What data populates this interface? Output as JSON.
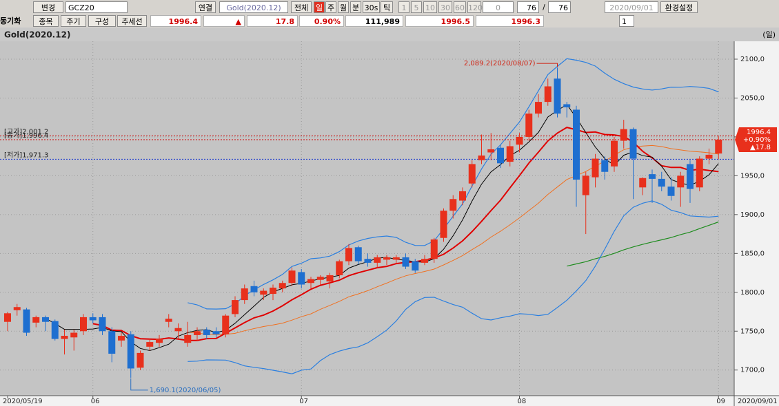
{
  "toolbar": {
    "row1": [
      "변경",
      "GCZ20",
      "연결",
      "Gold(2020.12)",
      "전체",
      "일",
      "주",
      "월",
      "분",
      "30s",
      "틱",
      "1",
      "5",
      "10",
      "30",
      "60",
      "120",
      "0",
      "76",
      "/",
      "76",
      "2020/09/01",
      "환경설정"
    ],
    "row2": [
      "동기화",
      "종목",
      "주기",
      "구성",
      "추세선",
      "1996.4",
      "▲",
      "17.8",
      "0.90%",
      "111,989",
      "1996.5",
      "1996.3",
      "1"
    ]
  },
  "chart_data": {
    "type": "candlestick",
    "title": "Gold(2020.12)",
    "period_label": "(일)",
    "categories": [
      "2020/05/19",
      null,
      null,
      null,
      null,
      null,
      null,
      null,
      null,
      "06",
      null,
      null,
      null,
      null,
      null,
      null,
      null,
      null,
      null,
      null,
      null,
      null,
      null,
      null,
      null,
      null,
      null,
      null,
      null,
      null,
      null,
      "07",
      null,
      null,
      null,
      null,
      null,
      null,
      null,
      null,
      null,
      null,
      null,
      null,
      null,
      null,
      null,
      null,
      null,
      null,
      null,
      null,
      null,
      null,
      "08",
      null,
      null,
      null,
      null,
      null,
      null,
      null,
      null,
      null,
      null,
      null,
      null,
      null,
      null,
      null,
      null,
      null,
      null,
      null,
      null,
      "09"
    ],
    "open": [
      1762,
      1777,
      1778,
      1761,
      1768,
      1763,
      1740,
      1742,
      1750,
      1768,
      1768,
      1750,
      1738,
      1746,
      1703,
      1730,
      1735,
      1762,
      1750,
      1735,
      1745,
      1752,
      1750,
      1746,
      1772,
      1790,
      1808,
      1797,
      1798,
      1805,
      1812,
      1826,
      1812,
      1816,
      1814,
      1822,
      1840,
      1858,
      1843,
      1838,
      1842,
      1842,
      1845,
      1840,
      1838,
      1843,
      1870,
      1905,
      1918,
      1940,
      1970,
      1980,
      1986,
      1968,
      1990,
      2000,
      2030,
      2045,
      2075,
      2042,
      2035,
      1925,
      1948,
      1970,
      1962,
      1995,
      2010,
      1935,
      1952,
      1946,
      1936,
      1935,
      1965,
      1935,
      1972,
      1978.6
    ],
    "high": [
      1775,
      1785,
      1780,
      1770,
      1770,
      1765,
      1752,
      1752,
      1772,
      1773,
      1772,
      1755,
      1748,
      1750,
      1725,
      1740,
      1745,
      1772,
      1760,
      1762,
      1755,
      1755,
      1755,
      1772,
      1795,
      1810,
      1815,
      1805,
      1810,
      1815,
      1832,
      1830,
      1820,
      1822,
      1825,
      1842,
      1862,
      1860,
      1850,
      1848,
      1848,
      1848,
      1850,
      1843,
      1848,
      1870,
      1908,
      1925,
      1935,
      1970,
      2003,
      2005,
      1990,
      1995,
      2005,
      2035,
      2055,
      2075,
      2089.2,
      2045,
      2040,
      1955,
      1978,
      1975,
      2000,
      2022,
      2012,
      1948,
      1958,
      1955,
      1948,
      1955,
      1970,
      1975,
      1985,
      2001.2
    ],
    "low": [
      1750,
      1770,
      1744,
      1755,
      1750,
      1738,
      1720,
      1725,
      1745,
      1760,
      1745,
      1710,
      1730,
      1690.1,
      1700,
      1725,
      1730,
      1755,
      1740,
      1730,
      1738,
      1740,
      1742,
      1742,
      1768,
      1785,
      1795,
      1790,
      1790,
      1800,
      1808,
      1805,
      1805,
      1810,
      1805,
      1818,
      1835,
      1836,
      1833,
      1832,
      1835,
      1837,
      1830,
      1825,
      1835,
      1838,
      1865,
      1895,
      1912,
      1935,
      1965,
      1970,
      1960,
      1962,
      1980,
      1995,
      2025,
      2040,
      2025,
      2025,
      1910,
      1875,
      1935,
      1945,
      1955,
      1985,
      1920,
      1925,
      1915,
      1930,
      1918,
      1910,
      1915,
      1930,
      1965,
      1971.3
    ],
    "close": [
      1773,
      1781,
      1748,
      1768,
      1762,
      1740,
      1744,
      1748,
      1768,
      1764,
      1750,
      1721,
      1744,
      1702,
      1722,
      1736,
      1740,
      1766,
      1754,
      1745,
      1750,
      1745,
      1746,
      1770,
      1790,
      1805,
      1800,
      1802,
      1806,
      1812,
      1828,
      1810,
      1817,
      1820,
      1822,
      1840,
      1857,
      1840,
      1838,
      1845,
      1845,
      1845,
      1833,
      1828,
      1843,
      1868,
      1905,
      1920,
      1930,
      1965,
      1976,
      1984,
      1966,
      1988,
      2000,
      2030,
      2045,
      2065,
      2030,
      2038,
      1945,
      1950,
      1972,
      1955,
      1995,
      2010,
      1972,
      1947,
      1946,
      1936,
      1924,
      1950,
      1933,
      1972,
      1977,
      1996.4
    ],
    "up_color": "#e8301c",
    "down_color": "#1e6fd0",
    "ylim": [
      1667,
      2123
    ],
    "yticks": [
      {
        "value": 1700,
        "label": "1700,0"
      },
      {
        "value": 1750,
        "label": "1750,0"
      },
      {
        "value": 1800,
        "label": "1800,0"
      },
      {
        "value": 1850,
        "label": "1850,0"
      },
      {
        "value": 1900,
        "label": "1900,0"
      },
      {
        "value": 1950,
        "label": "1950,0"
      },
      {
        "value": 2000,
        "label": "2000,0"
      },
      {
        "value": 2050,
        "label": "2050,0"
      },
      {
        "value": 2100,
        "label": "2100,0"
      }
    ],
    "grid": true,
    "indicators": [
      {
        "type": "ma",
        "period": 60,
        "color": "#1e8c1e",
        "width": 1.2
      },
      {
        "type": "bollinger",
        "period": 20,
        "k": 2,
        "color": "#2a7fe0",
        "width": 1.2
      },
      {
        "type": "ma",
        "period": 20,
        "color": "#f07020",
        "width": 1
      },
      {
        "type": "ma",
        "period": 10,
        "color": "#e00000",
        "width": 2
      },
      {
        "type": "ma",
        "period": 5,
        "color": "#000000",
        "width": 1
      }
    ],
    "high_note": {
      "text": "2,089.2(2020/08/07)",
      "index": 58,
      "color": "#d02010"
    },
    "low_note": {
      "text": "1,690.1(2020/06/05)",
      "index": 13,
      "color": "#2a6fc0"
    },
    "price_lines": [
      {
        "label": "[고가]2,001.2",
        "value": 2001.2,
        "color": "#d00000"
      },
      {
        "label": "[종가]1,996.4",
        "value": 1996.4,
        "color": "#d00000"
      },
      {
        "label": "[저가]1,971.3",
        "value": 1971.3,
        "color": "#1030d0"
      }
    ],
    "last_box": {
      "lines": [
        "1996.4",
        "+0.90%",
        "▲17.8"
      ],
      "color": "#e8301c"
    },
    "end_date": "2020/09/01"
  }
}
